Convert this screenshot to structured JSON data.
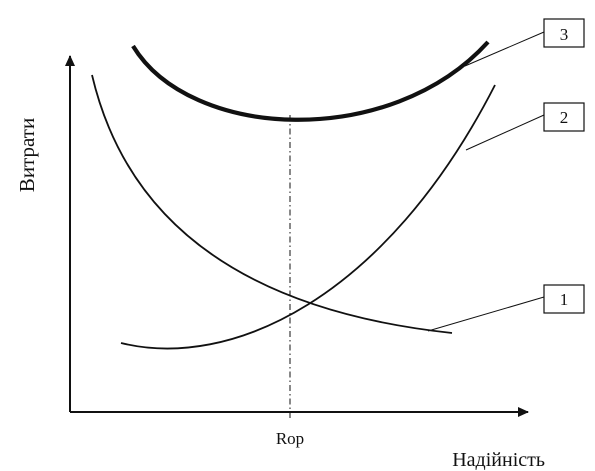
{
  "chart_data": {
    "type": "line",
    "ylabel": "Витрати",
    "xlabel": "Надійність",
    "x_tick_label": "Rop",
    "series": [
      {
        "callout": "1"
      },
      {
        "callout": "2"
      },
      {
        "callout": "3"
      }
    ],
    "grid": false,
    "legend": "none"
  }
}
